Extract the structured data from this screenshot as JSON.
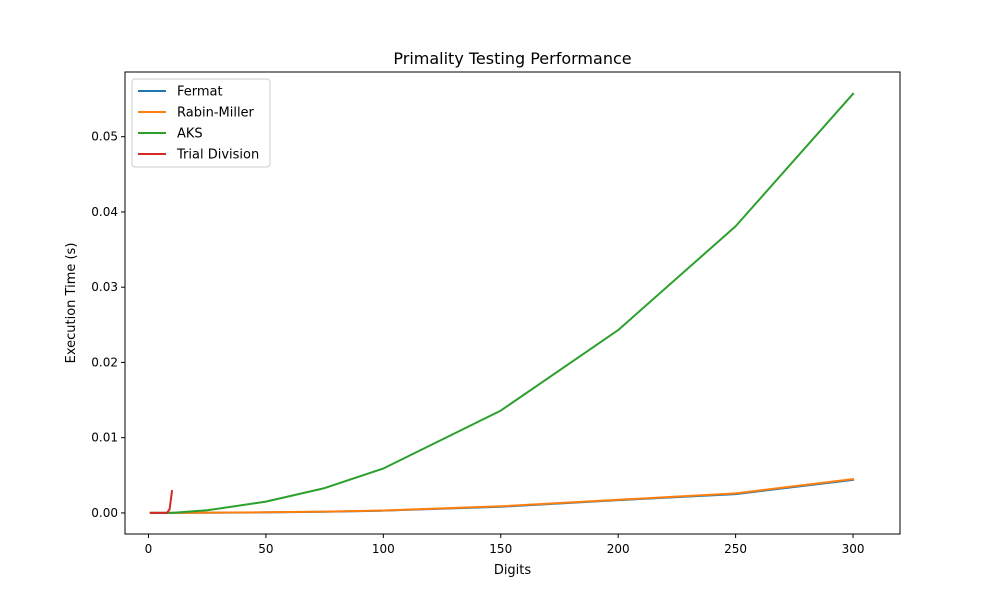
{
  "chart_data": {
    "type": "line",
    "title": "Primality Testing Performance",
    "xlabel": "Digits",
    "ylabel": "Execution Time (s)",
    "xlim": [
      -10,
      320
    ],
    "ylim": [
      -0.0028,
      0.0586
    ],
    "xticks": [
      0,
      50,
      100,
      150,
      200,
      250,
      300
    ],
    "xtick_labels": [
      "0",
      "50",
      "100",
      "150",
      "200",
      "250",
      "300"
    ],
    "yticks": [
      0.0,
      0.01,
      0.02,
      0.03,
      0.04,
      0.05
    ],
    "ytick_labels": [
      "0.00",
      "0.01",
      "0.02",
      "0.03",
      "0.04",
      "0.05"
    ],
    "grid": false,
    "legend": "upper-left",
    "series": [
      {
        "name": "Fermat",
        "color": "#1f77b4",
        "x": [
          1,
          2,
          3,
          4,
          5,
          6,
          7,
          8,
          9,
          10,
          25,
          50,
          75,
          100,
          150,
          200,
          250,
          300
        ],
        "y": [
          0,
          0,
          0,
          0,
          0,
          0,
          0,
          0,
          0,
          5e-06,
          3e-05,
          7e-05,
          0.00015,
          0.0003,
          0.00082,
          0.0017,
          0.0025,
          0.0044
        ]
      },
      {
        "name": "Rabin-Miller",
        "color": "#ff7f0e",
        "x": [
          1,
          2,
          3,
          4,
          5,
          6,
          7,
          8,
          9,
          10,
          25,
          50,
          75,
          100,
          150,
          200,
          250,
          300
        ],
        "y": [
          0,
          0,
          0,
          0,
          0,
          0,
          0,
          0,
          0,
          6e-06,
          4e-05,
          9e-05,
          0.00017,
          0.00033,
          0.00088,
          0.00175,
          0.0026,
          0.0045
        ]
      },
      {
        "name": "AKS",
        "color": "#2ca02c",
        "x": [
          1,
          2,
          3,
          4,
          5,
          6,
          7,
          8,
          9,
          10,
          25,
          50,
          75,
          100,
          150,
          200,
          250,
          300
        ],
        "y": [
          0,
          0,
          0,
          0,
          0,
          0,
          0,
          0,
          0,
          1e-05,
          0.00035,
          0.0015,
          0.0033,
          0.0059,
          0.0136,
          0.0243,
          0.0381,
          0.0557
        ]
      },
      {
        "name": "Trial Division",
        "color": "#d62728",
        "x": [
          1,
          2,
          3,
          4,
          5,
          6,
          7,
          8,
          9,
          10
        ],
        "y": [
          0,
          0,
          0,
          0,
          0,
          0,
          1e-05,
          5e-05,
          0.0005,
          0.0029
        ]
      }
    ]
  }
}
